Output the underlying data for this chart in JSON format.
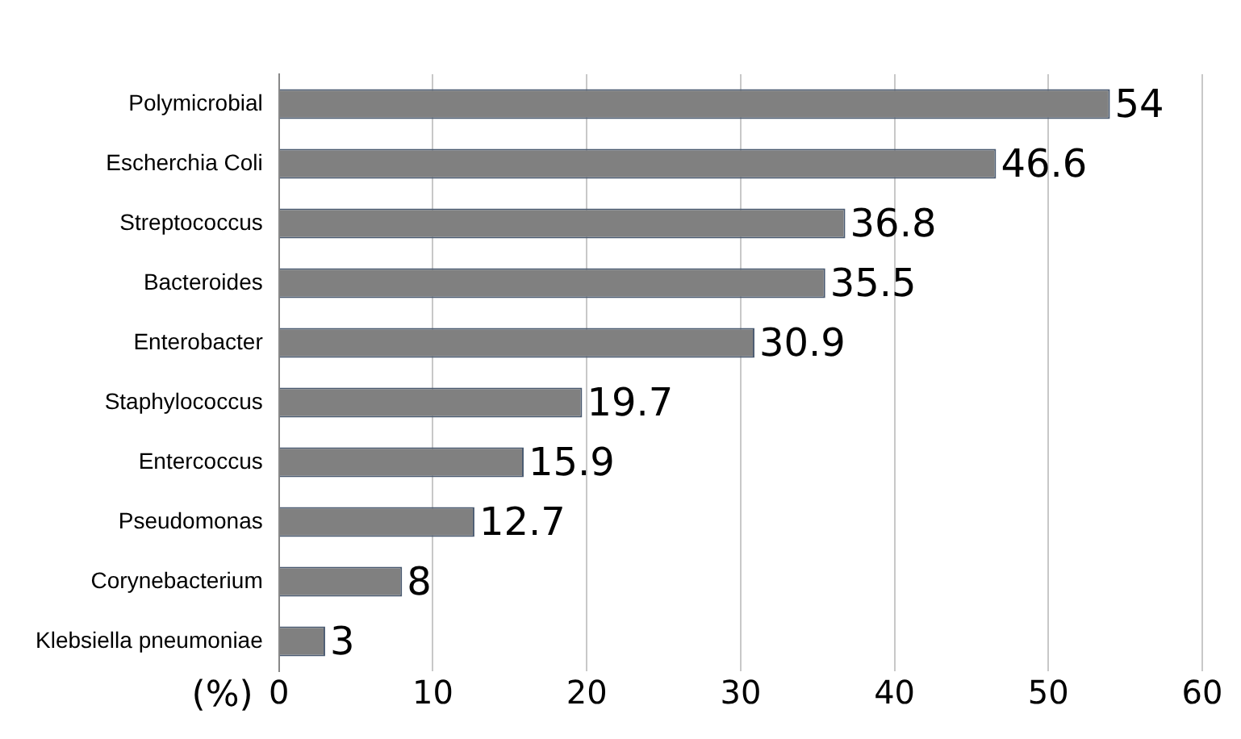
{
  "chart_data": {
    "type": "bar",
    "orientation": "horizontal",
    "xlabel": "(%)",
    "categories": [
      "Polymicrobial",
      "Escherchia Coli",
      "Streptococcus",
      "Bacteroides",
      "Enterobacter",
      "Staphylococcus",
      "Entercoccus",
      "Pseudomonas",
      "Corynebacterium",
      "Klebsiella pneumoniae"
    ],
    "values": [
      54,
      46.6,
      36.8,
      35.5,
      30.9,
      19.7,
      15.9,
      12.7,
      8,
      3
    ],
    "color": "#808080",
    "xlim": [
      0,
      60
    ],
    "xticks": [
      0,
      10,
      20,
      30,
      40,
      50,
      60
    ],
    "grid": "x",
    "data_labels": true,
    "legend": false
  }
}
